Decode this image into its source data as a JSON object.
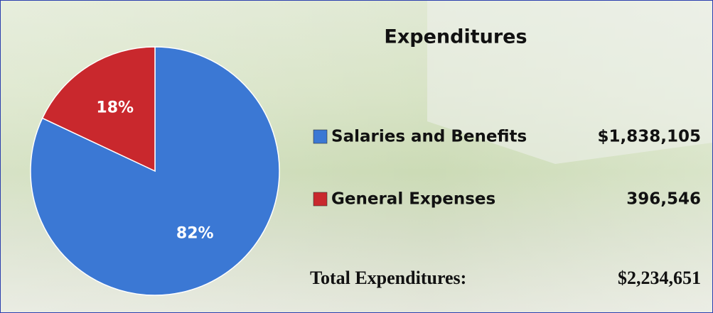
{
  "chart_data": {
    "type": "pie",
    "title": "Expenditures",
    "categories": [
      "Salaries and Benefits",
      "General Expenses"
    ],
    "values": [
      82,
      18
    ],
    "value_labels": [
      "82%",
      "18%"
    ],
    "colors": [
      "#3b78d4",
      "#c9282d"
    ],
    "amounts": [
      "$1,838,105",
      "396,546"
    ],
    "total_label": "Total Expenditures:",
    "total": "$2,234,651"
  }
}
